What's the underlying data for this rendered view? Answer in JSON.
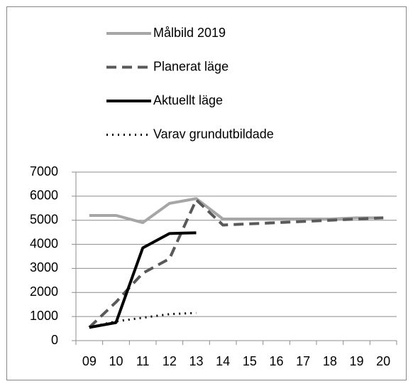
{
  "chart_data": {
    "type": "line",
    "categories": [
      "09",
      "10",
      "11",
      "12",
      "13",
      "14",
      "15",
      "16",
      "17",
      "18",
      "19",
      "20"
    ],
    "series": [
      {
        "name": "Målbild 2019",
        "color": "#a6a6a6",
        "dash": "solid",
        "values": [
          5200,
          5200,
          4900,
          5700,
          5900,
          5050,
          5050,
          5050,
          5050,
          5050,
          5100,
          5100
        ]
      },
      {
        "name": "Planerat läge",
        "color": "#595959",
        "dash": "dashed",
        "values": [
          550,
          1600,
          2800,
          3400,
          5850,
          4800,
          4850,
          4900,
          4950,
          5000,
          5050,
          5100
        ]
      },
      {
        "name": "Aktuellt läge",
        "color": "#000000",
        "dash": "solid",
        "values": [
          550,
          750,
          3850,
          4450,
          4480,
          null,
          null,
          null,
          null,
          null,
          null,
          null
        ]
      },
      {
        "name": "Varav grundutbildade",
        "color": "#000000",
        "dash": "dotted",
        "values": [
          550,
          800,
          950,
          1100,
          1150,
          null,
          null,
          null,
          null,
          null,
          null,
          null
        ]
      }
    ],
    "ylim": [
      0,
      7000
    ],
    "yticks": [
      0,
      1000,
      2000,
      3000,
      4000,
      5000,
      6000,
      7000
    ],
    "grid": true,
    "legend": "top"
  }
}
